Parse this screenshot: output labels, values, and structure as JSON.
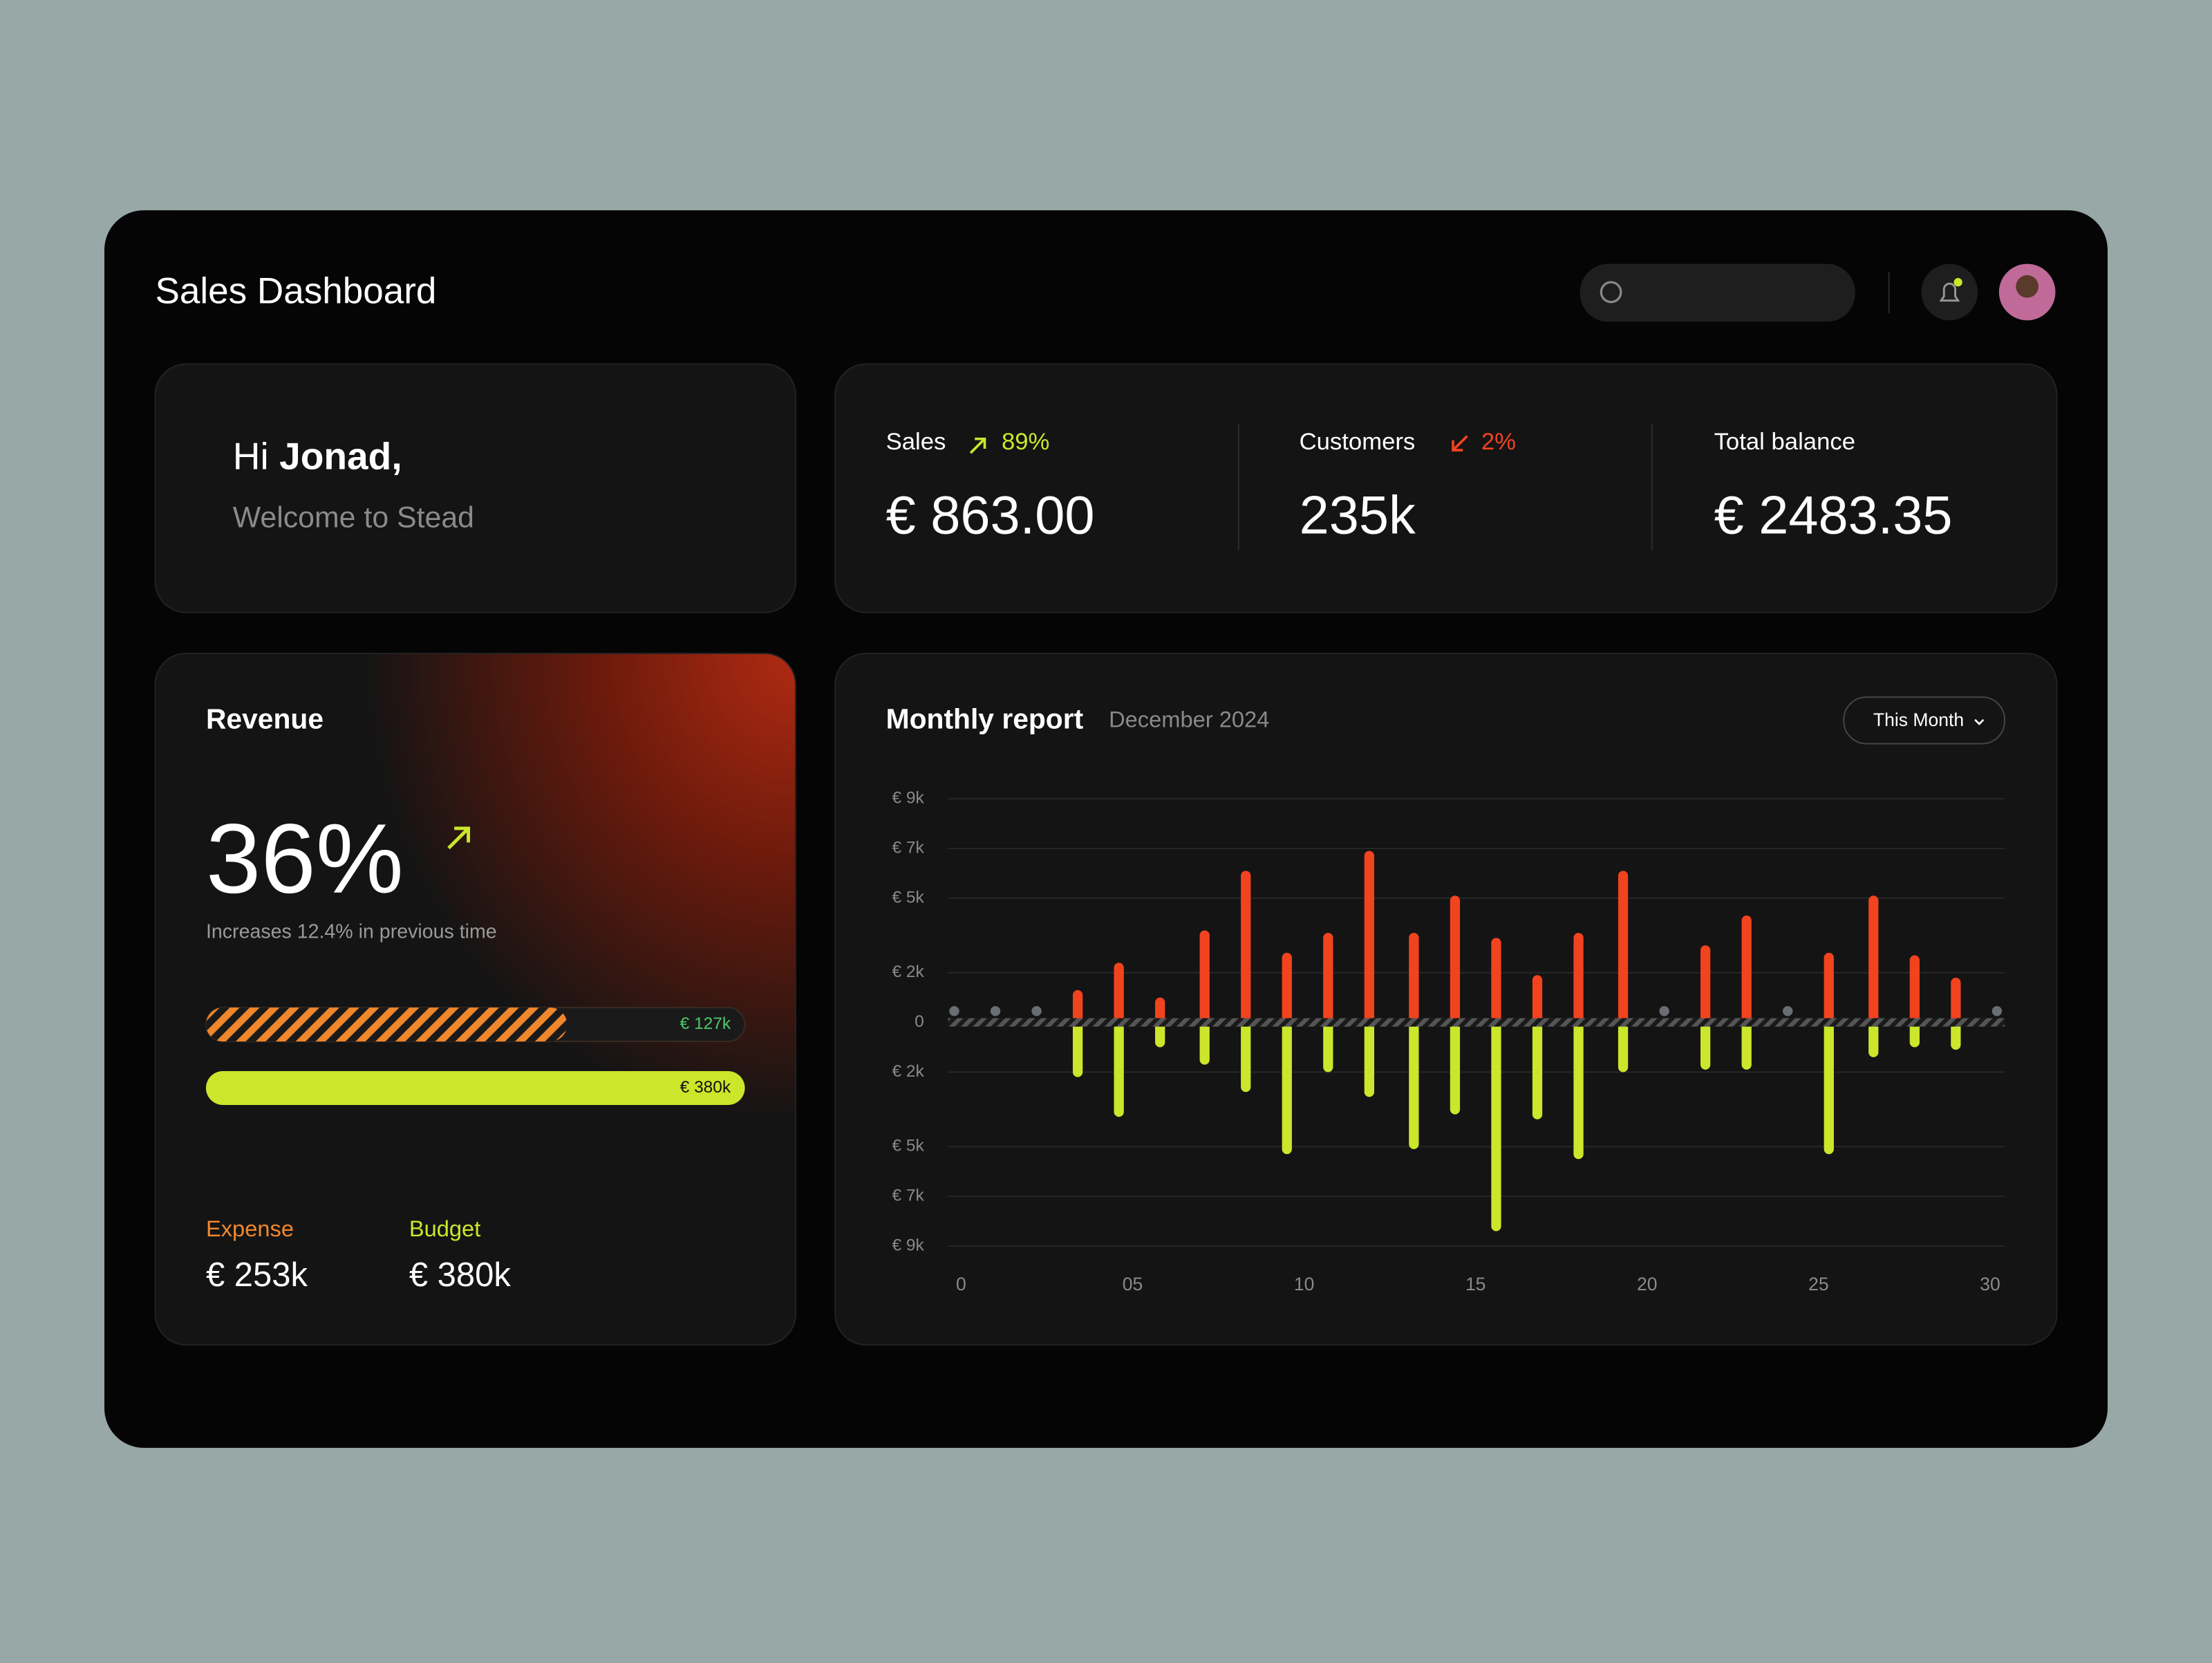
{
  "header": {
    "title": "Sales Dashboard"
  },
  "greeting": {
    "hi": "Hi",
    "name": "Jonad,",
    "welcome": "Welcome to Stead"
  },
  "stats": [
    {
      "label": "Sales",
      "change": "89%",
      "value": "€ 863.00"
    },
    {
      "label": "Customers",
      "change": "2%",
      "value": "235k"
    },
    {
      "label": "Total balance",
      "value": "€ 2483.35"
    }
  ],
  "revenue": {
    "title": "Revenue",
    "percent": "36%",
    "note": "Increases 12.4% in previous time",
    "bar_labels": [
      "€ 127k",
      "€ 380k"
    ],
    "expense": {
      "label": "Expense",
      "value": "€ 253k"
    },
    "budget": {
      "label": "Budget",
      "value": "€ 380k"
    }
  },
  "filter": "This Month",
  "chart_data": {
    "type": "bar",
    "title": "Monthly report",
    "subtitle": "December 2024",
    "x": [
      -0.2,
      1.0,
      2.2,
      3.4,
      4.6,
      5.8,
      7.1,
      8.3,
      9.5,
      10.7,
      11.9,
      13.2,
      14.4,
      15.6,
      16.8,
      18.0,
      19.3,
      20.5,
      21.7,
      22.9,
      24.1,
      25.3,
      26.6,
      27.8,
      29.0,
      30.2
    ],
    "series": [
      {
        "color": "#f2431f",
        "values": [
          0,
          0,
          0,
          1300,
          2400,
          1000,
          3700,
          6100,
          2800,
          3600,
          6900,
          3600,
          5100,
          3400,
          1900,
          3600,
          6100,
          0,
          3100,
          4300,
          0,
          2800,
          5100,
          2700,
          1800,
          0
        ]
      },
      {
        "color": "#cbe62b",
        "values": [
          0,
          0,
          0,
          -2200,
          -3800,
          -1000,
          -1700,
          -2800,
          -5300,
          -2000,
          -3000,
          -5100,
          -3700,
          -8400,
          -3900,
          -5500,
          -2000,
          0,
          -1900,
          -1900,
          0,
          -5300,
          -1400,
          -1000,
          -1100,
          0
        ]
      }
    ],
    "xlim": [
      -0.3,
      30.3
    ],
    "xticks": [
      0,
      {
        "value": 5,
        "label": "05"
      },
      10,
      15,
      20,
      25,
      30
    ],
    "ylim": [
      -9000,
      9000
    ],
    "yticks": [
      {
        "value": 9000,
        "label": "€ 9k"
      },
      {
        "value": 7000,
        "label": "€ 7k"
      },
      {
        "value": 5000,
        "label": "€ 5k"
      },
      {
        "value": 2000,
        "label": "€ 2k"
      },
      0,
      {
        "value": -2000,
        "label": "€ 2k"
      },
      {
        "value": -5000,
        "label": "€ 5k"
      },
      {
        "value": -7000,
        "label": "€ 7k"
      },
      {
        "value": -9000,
        "label": "€ 9k"
      }
    ],
    "grid": true
  }
}
